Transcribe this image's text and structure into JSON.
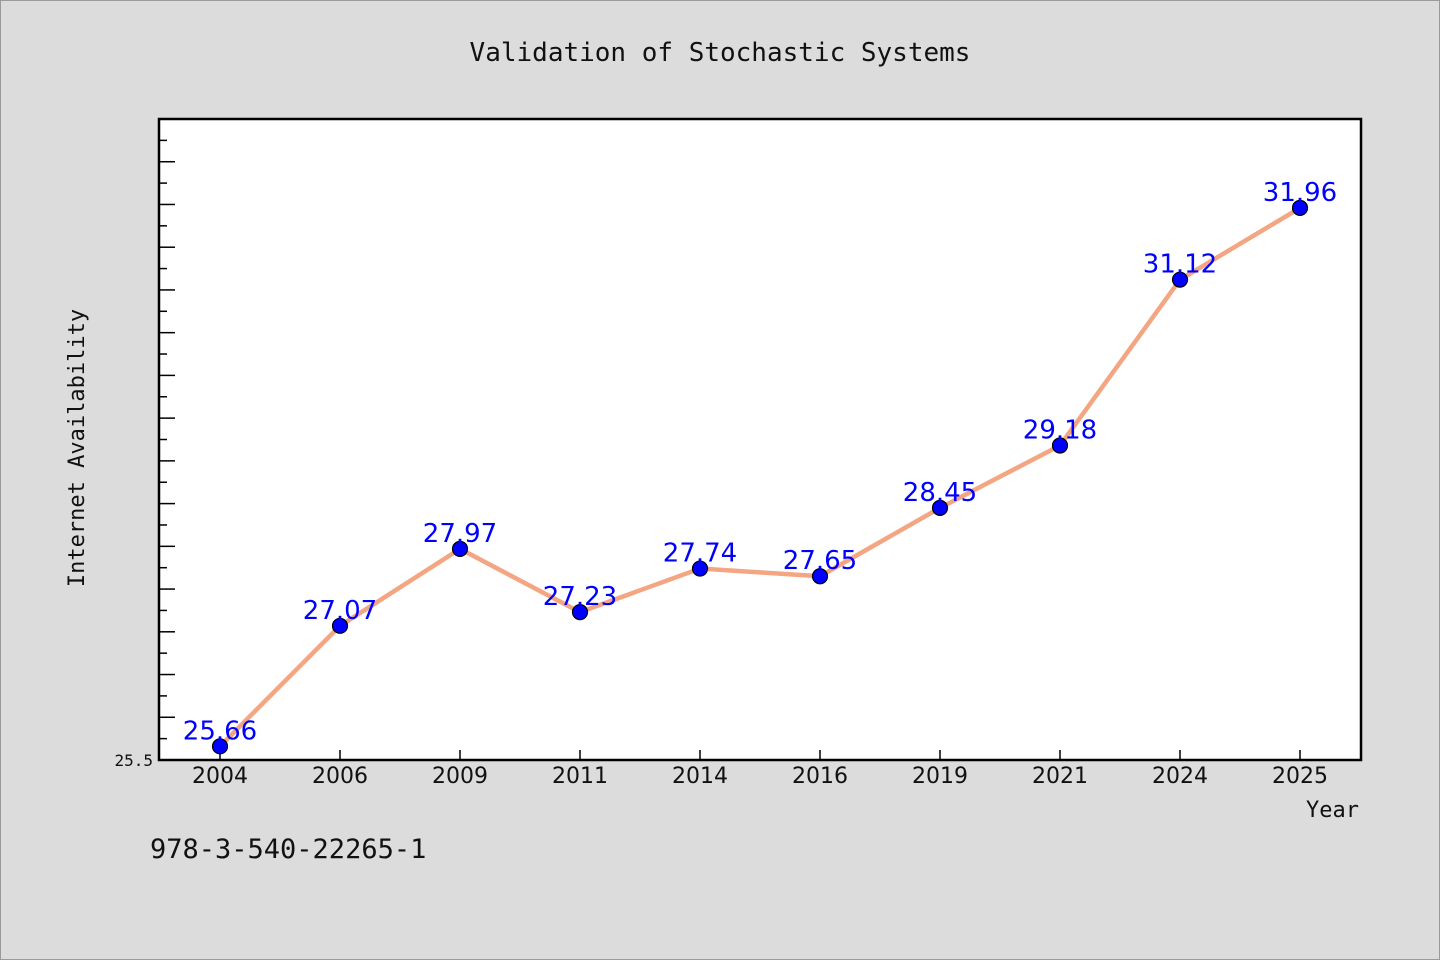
{
  "chart_data": {
    "type": "line",
    "title": "Validation of Stochastic Systems",
    "xlabel": "Year",
    "ylabel": "Internet Availability",
    "categories": [
      "2004",
      "2006",
      "2009",
      "2011",
      "2014",
      "2016",
      "2019",
      "2021",
      "2024",
      "2025"
    ],
    "series": [
      {
        "values": [
          25.66,
          27.07,
          27.97,
          27.23,
          27.74,
          27.65,
          28.45,
          29.18,
          31.12,
          31.96
        ]
      }
    ],
    "data_labels": [
      "25.66",
      "27.07",
      "27.97",
      "27.23",
      "27.74",
      "27.65",
      "28.45",
      "29.18",
      "31.12",
      "31.96"
    ],
    "ylim": [
      25.5,
      33.0
    ],
    "yticks_labeled": [
      "25.5"
    ],
    "grid": false,
    "legend": "none",
    "colors": {
      "line": "#f4a582",
      "marker": "#0000ff",
      "label": "#0000ff",
      "plot_bg": "#ffffff",
      "page_bg": "#dcdcdc"
    }
  },
  "footer": {
    "isbn": "978-3-540-22265-1"
  }
}
